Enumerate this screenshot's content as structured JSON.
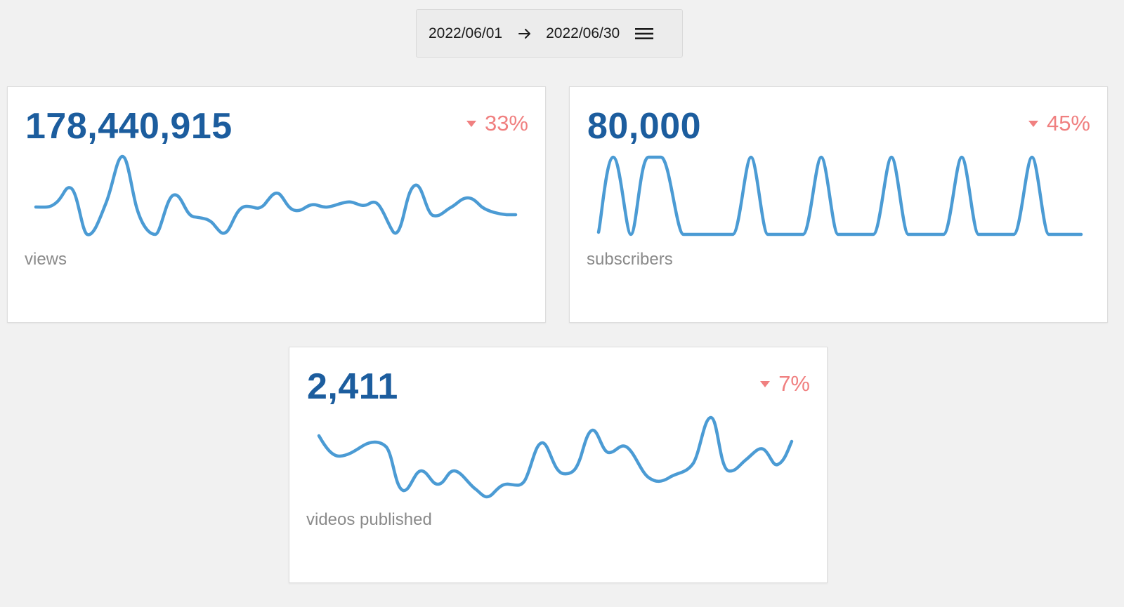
{
  "date_range": {
    "start": "2022/06/01",
    "end": "2022/06/30",
    "arrow_icon": "arrow-right-icon",
    "menu_icon": "menu-icon"
  },
  "colors": {
    "value": "#1c5d9e",
    "change_negative": "#f08080",
    "sparkline": "#4b9bd4",
    "label": "#8a8a8a"
  },
  "cards": [
    {
      "value": "178,440,915",
      "change": "33%",
      "direction": "down",
      "label": "views"
    },
    {
      "value": "80,000",
      "change": "45%",
      "direction": "down",
      "label": "subscribers"
    },
    {
      "value": "2,411",
      "change": "7%",
      "direction": "down",
      "label": "videos published"
    }
  ]
}
